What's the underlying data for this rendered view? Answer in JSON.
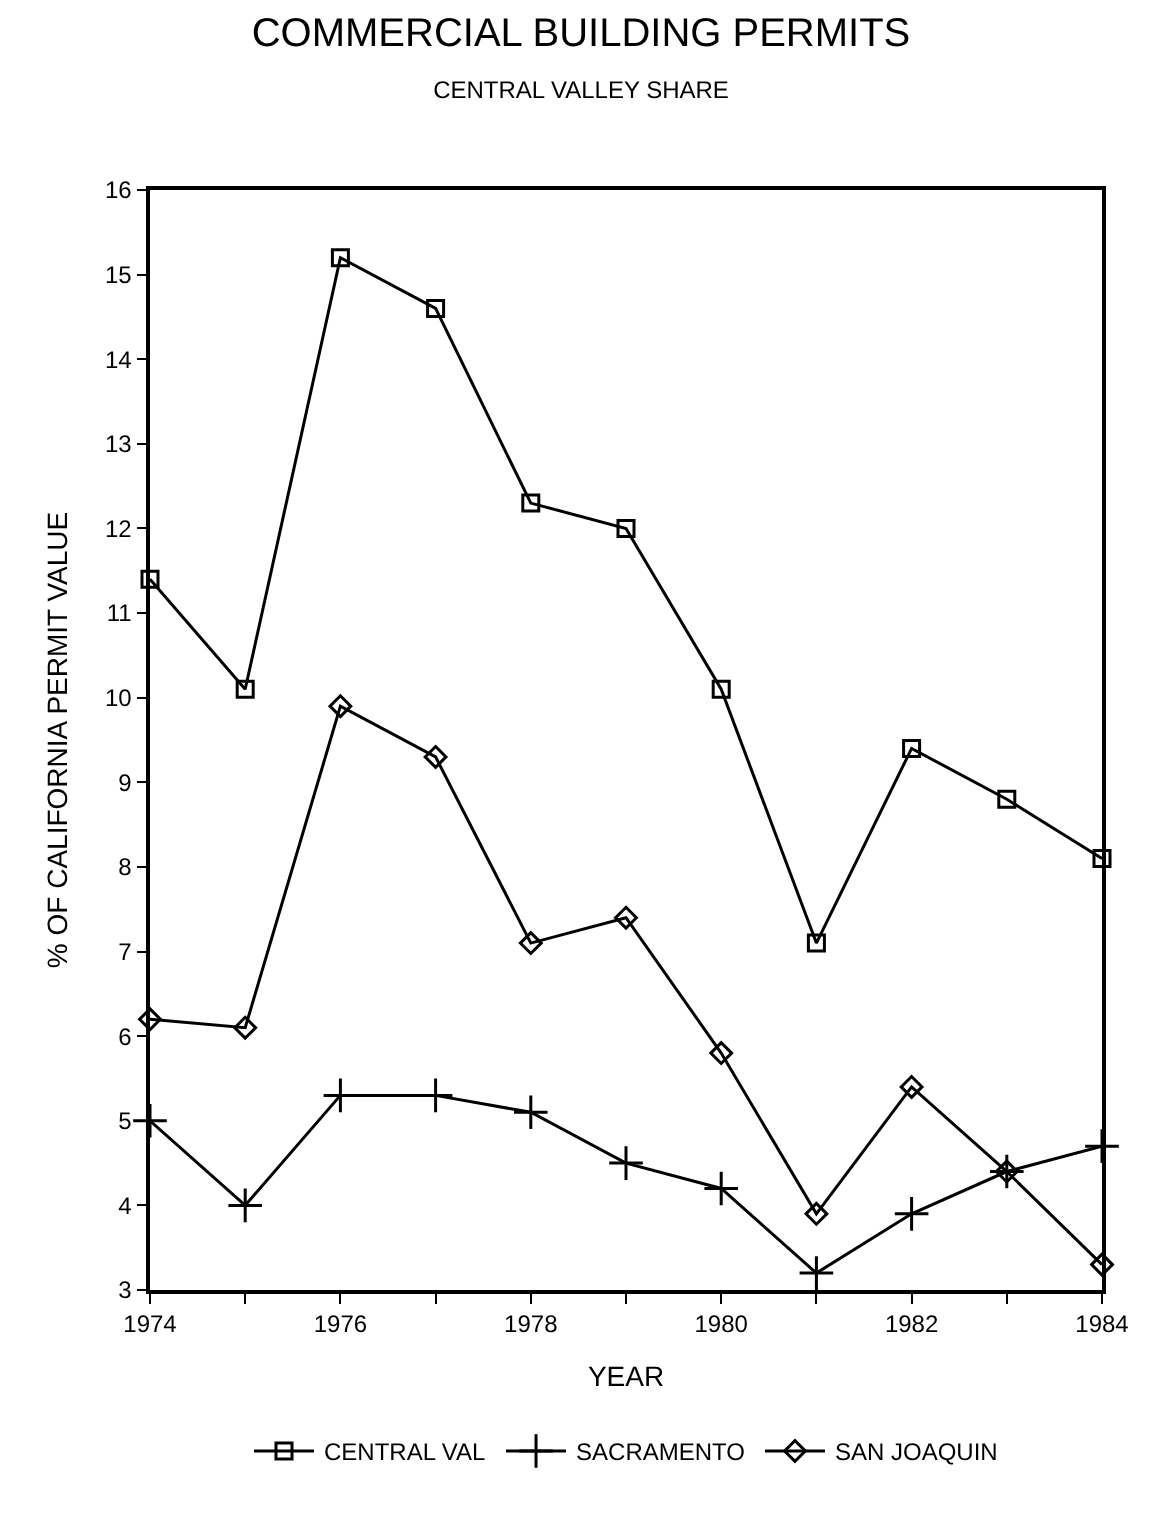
{
  "chart_data": {
    "type": "line",
    "title": "COMMERCIAL BUILDING PERMITS",
    "subtitle": "CENTRAL VALLEY SHARE",
    "xlabel": "YEAR",
    "ylabel": "% OF CALIFORNIA PERMIT VALUE",
    "x": [
      1974,
      1975,
      1976,
      1977,
      1978,
      1979,
      1980,
      1981,
      1982,
      1983,
      1984
    ],
    "series": [
      {
        "name": "CENTRAL VAL",
        "color": "#000000",
        "marker": "square",
        "values": [
          11.4,
          10.1,
          15.2,
          14.6,
          12.3,
          12.0,
          10.1,
          7.1,
          9.4,
          8.8,
          8.1
        ]
      },
      {
        "name": "SACRAMENTO",
        "color": "#000000",
        "marker": "cross",
        "values": [
          5.0,
          4.0,
          5.3,
          5.3,
          5.1,
          4.5,
          4.2,
          3.2,
          3.9,
          4.4,
          4.7
        ]
      },
      {
        "name": "SAN JOAQUIN",
        "color": "#000000",
        "marker": "diamond",
        "values": [
          6.2,
          6.1,
          9.9,
          9.3,
          7.1,
          7.4,
          5.8,
          3.9,
          5.4,
          4.4,
          3.3
        ]
      }
    ],
    "xlim": [
      1974,
      1984
    ],
    "xticks": [
      1974,
      {
        "value": 1975,
        "label": null
      },
      1976,
      {
        "value": 1977,
        "label": null
      },
      1978,
      {
        "value": 1979,
        "label": null
      },
      1980,
      {
        "value": 1981,
        "label": null
      },
      1982,
      {
        "value": 1983,
        "label": null
      },
      1984
    ],
    "ylim": [
      3,
      16
    ],
    "yticks": [
      3,
      4,
      5,
      6,
      7,
      8,
      9,
      10,
      11,
      12,
      13,
      14,
      15,
      16
    ],
    "legend": "bottom",
    "line_style": "solid"
  }
}
